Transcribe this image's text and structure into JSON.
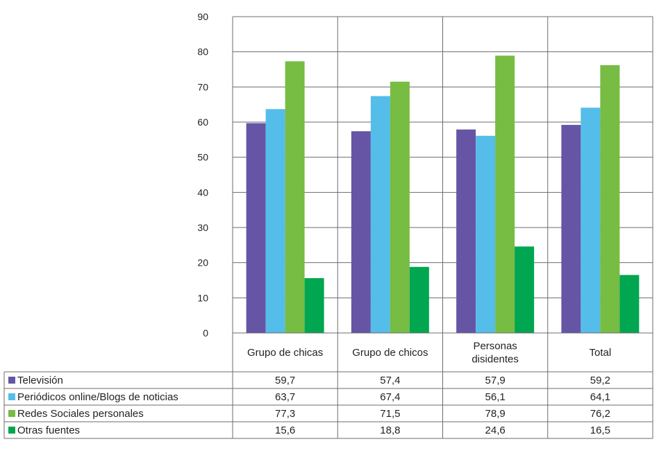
{
  "chart_data": {
    "type": "bar",
    "categories": [
      [
        "Grupo de chicas"
      ],
      [
        "Grupo de chicos"
      ],
      [
        "Personas",
        "disidentes"
      ],
      [
        "Total"
      ]
    ],
    "series": [
      {
        "name": "Televisión",
        "color": "#6655a5",
        "values": [
          59.7,
          57.4,
          57.9,
          59.2
        ],
        "labels": [
          "59,7",
          "57,4",
          "57,9",
          "59,2"
        ]
      },
      {
        "name": "Periódicos online/Blogs de noticias",
        "color": "#55bde9",
        "values": [
          63.7,
          67.4,
          56.1,
          64.1
        ],
        "labels": [
          "63,7",
          "67,4",
          "56,1",
          "64,1"
        ]
      },
      {
        "name": "Redes Sociales personales",
        "color": "#77bc43",
        "values": [
          77.3,
          71.5,
          78.9,
          76.2
        ],
        "labels": [
          "77,3",
          "71,5",
          "78,9",
          "76,2"
        ]
      },
      {
        "name": "Otras fuentes",
        "color": "#00a650",
        "values": [
          15.6,
          18.8,
          24.6,
          16.5
        ],
        "labels": [
          "15,6",
          "18,8",
          "24,6",
          "16,5"
        ]
      }
    ],
    "yticks": [
      "0",
      "10",
      "20",
      "30",
      "40",
      "50",
      "60",
      "70",
      "80",
      "90"
    ],
    "ylim": [
      0,
      90
    ],
    "grid": true,
    "legend": "data-table-left"
  }
}
